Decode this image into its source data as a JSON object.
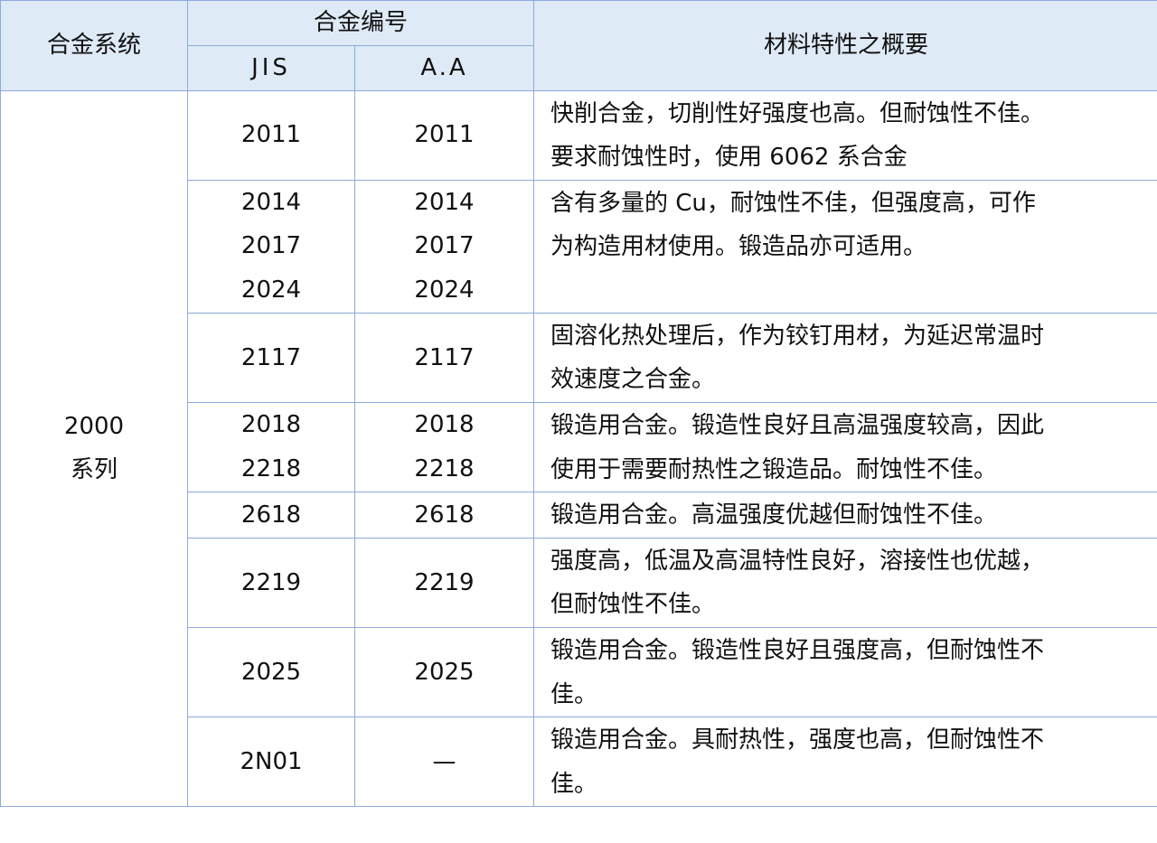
{
  "header": {
    "system": "合金系统",
    "number": "合金编号",
    "jis": "JIS",
    "aa": "A.A",
    "properties": "材料特性之概要"
  },
  "series": {
    "line1": "2000",
    "line2": "系列"
  },
  "rows": [
    {
      "jis": [
        "2011"
      ],
      "aa": [
        "2011"
      ],
      "desc": [
        "快削合金，切削性好强度也高。但耐蚀性不佳。",
        "要求耐蚀性时，使用 6062 系合金"
      ]
    },
    {
      "jis": [
        "2014",
        "2017",
        "2024"
      ],
      "aa": [
        "2014",
        "2017",
        "2024"
      ],
      "desc": [
        "含有多量的 Cu，耐蚀性不佳，但强度高，可作",
        "为构造用材使用。锻造品亦可适用。"
      ]
    },
    {
      "jis": [
        "2117"
      ],
      "aa": [
        "2117"
      ],
      "desc": [
        "固溶化热处理后，作为铰钉用材，为延迟常温时",
        "效速度之合金。"
      ]
    },
    {
      "jis": [
        "2018",
        "2218"
      ],
      "aa": [
        "2018",
        "2218"
      ],
      "desc": [
        "锻造用合金。锻造性良好且高温强度较高，因此",
        "使用于需要耐热性之锻造品。耐蚀性不佳。"
      ]
    },
    {
      "jis": [
        "2618"
      ],
      "aa": [
        "2618"
      ],
      "desc": [
        "锻造用合金。高温强度优越但耐蚀性不佳。"
      ]
    },
    {
      "jis": [
        "2219"
      ],
      "aa": [
        "2219"
      ],
      "desc": [
        "强度高，低温及高温特性良好，溶接性也优越，",
        "但耐蚀性不佳。"
      ]
    },
    {
      "jis": [
        "2025"
      ],
      "aa": [
        "2025"
      ],
      "desc": [
        "锻造用合金。锻造性良好且强度高，但耐蚀性不",
        "佳。"
      ]
    },
    {
      "jis": [
        "2N01"
      ],
      "aa": [
        "—"
      ],
      "desc": [
        "锻造用合金。具耐热性，强度也高，但耐蚀性不",
        "佳。"
      ]
    }
  ]
}
